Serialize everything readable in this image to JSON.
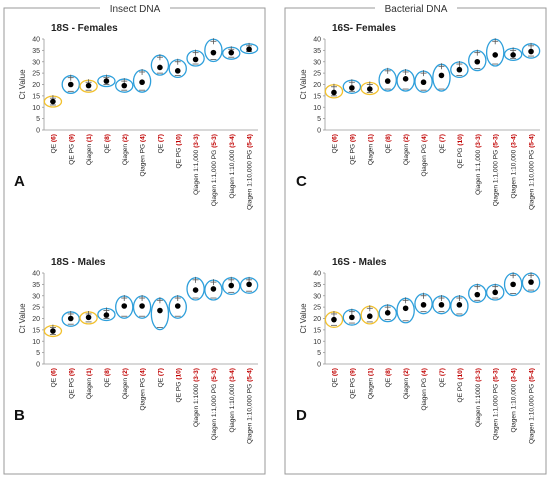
{
  "columns": [
    {
      "header": "Insect DNA"
    },
    {
      "header": "Bacterial DNA"
    }
  ],
  "chart_data": [
    {
      "type": "scatter",
      "panel": "A",
      "title": "18S - Females",
      "ylabel": "Ct Value",
      "ylim": [
        0,
        40
      ],
      "yticks": [
        0,
        5,
        10,
        15,
        20,
        25,
        30,
        35,
        40
      ],
      "categories": [
        {
          "text": "QE ",
          "tag": "(6)",
          "tag_color": "#c00000"
        },
        {
          "text": "QE PG ",
          "tag": "(9)",
          "tag_color": "#c00000"
        },
        {
          "text": "Qiagen ",
          "tag": "(1)",
          "tag_color": "#c00000"
        },
        {
          "text": "QE ",
          "tag": "(8)",
          "tag_color": "#c00000"
        },
        {
          "text": "Qiagen ",
          "tag": "(2)",
          "tag_color": "#c00000"
        },
        {
          "text": "Qiagen PG ",
          "tag": "(4)",
          "tag_color": "#c00000"
        },
        {
          "text": "QE ",
          "tag": "(7)",
          "tag_color": "#c00000"
        },
        {
          "text": "QE PG ",
          "tag": "(10)",
          "tag_color": "#c00000"
        },
        {
          "text": "Qiagen 1:1,000 ",
          "tag": "(3-3)",
          "tag_color": "#c00000"
        },
        {
          "text": "Qiagen 1:1,000 PG ",
          "tag": "(5-3)",
          "tag_color": "#c00000"
        },
        {
          "text": "Qiagen 1:10,000 ",
          "tag": "(3-4)",
          "tag_color": "#c00000"
        },
        {
          "text": "Qiagen 1:10,000 PG ",
          "tag": "(5-4)",
          "tag_color": "#c00000"
        }
      ],
      "values": [
        12.5,
        20,
        19.5,
        21.5,
        19.5,
        21,
        27.5,
        26,
        31,
        34,
        34,
        35.5
      ],
      "ranges": [
        [
          11,
          14
        ],
        [
          17,
          23
        ],
        [
          17.5,
          21
        ],
        [
          20,
          23
        ],
        [
          17.5,
          21.5
        ],
        [
          17.5,
          25.5
        ],
        [
          25,
          32
        ],
        [
          24,
          30
        ],
        [
          29,
          34
        ],
        [
          31,
          39
        ],
        [
          32,
          35.5
        ],
        [
          34.5,
          37
        ]
      ],
      "ellipse_colors": [
        "#f2c12e",
        "#2e9fdb",
        "#f2c12e",
        "#2e9fdb",
        "#2e9fdb",
        "#2e9fdb",
        "#2e9fdb",
        "#2e9fdb",
        "#2e9fdb",
        "#2e9fdb",
        "#2e9fdb",
        "#2e9fdb"
      ]
    },
    {
      "type": "scatter",
      "panel": "C",
      "title": "16S-  Females",
      "ylabel": "Ct Value",
      "ylim": [
        0,
        40
      ],
      "yticks": [
        0,
        5,
        10,
        15,
        20,
        25,
        30,
        35,
        40
      ],
      "categories": [
        {
          "text": "QE ",
          "tag": "(6)",
          "tag_color": "#c00000"
        },
        {
          "text": "QE PG ",
          "tag": "(9)",
          "tag_color": "#c00000"
        },
        {
          "text": "Qiagen ",
          "tag": "(1)",
          "tag_color": "#c00000"
        },
        {
          "text": "QE ",
          "tag": "(8)",
          "tag_color": "#c00000"
        },
        {
          "text": "Qiagen ",
          "tag": "(2)",
          "tag_color": "#c00000"
        },
        {
          "text": "Qiagen PG ",
          "tag": "(4)",
          "tag_color": "#c00000"
        },
        {
          "text": "QE ",
          "tag": "(7)",
          "tag_color": "#c00000"
        },
        {
          "text": "QE PG ",
          "tag": "(10)",
          "tag_color": "#c00000"
        },
        {
          "text": "Qiagen 1:1,000 ",
          "tag": "(3-3)",
          "tag_color": "#c00000"
        },
        {
          "text": "Qiagen 1:1,000 PG ",
          "tag": "(5-3)",
          "tag_color": "#c00000"
        },
        {
          "text": "Qiagen 1:10,000 ",
          "tag": "(3-4)",
          "tag_color": "#c00000"
        },
        {
          "text": "Qiagen 1:10,000 PG ",
          "tag": "(5-4)",
          "tag_color": "#c00000"
        }
      ],
      "values": [
        16.5,
        18.5,
        18,
        21.5,
        22.5,
        21,
        24,
        26.5,
        30,
        33,
        33,
        34.5
      ],
      "ranges": [
        [
          15,
          19
        ],
        [
          17,
          21
        ],
        [
          16.5,
          20
        ],
        [
          18,
          26
        ],
        [
          18,
          25.5
        ],
        [
          17.5,
          25
        ],
        [
          18,
          28
        ],
        [
          24,
          29
        ],
        [
          27,
          34
        ],
        [
          29,
          39
        ],
        [
          31.5,
          35
        ],
        [
          32.5,
          37
        ]
      ],
      "ellipse_colors": [
        "#f2c12e",
        "#2e9fdb",
        "#f2c12e",
        "#2e9fdb",
        "#2e9fdb",
        "#2e9fdb",
        "#2e9fdb",
        "#2e9fdb",
        "#2e9fdb",
        "#2e9fdb",
        "#2e9fdb",
        "#2e9fdb"
      ]
    },
    {
      "type": "scatter",
      "panel": "B",
      "title": "18S - Males",
      "ylabel": "Ct Value",
      "ylim": [
        0,
        40
      ],
      "yticks": [
        0,
        5,
        10,
        15,
        20,
        25,
        30,
        35,
        40
      ],
      "categories": [
        {
          "text": "QE ",
          "tag": "(6)",
          "tag_color": "#c00000"
        },
        {
          "text": "QE PG ",
          "tag": "(9)",
          "tag_color": "#c00000"
        },
        {
          "text": "Qiagen ",
          "tag": "(1)",
          "tag_color": "#c00000"
        },
        {
          "text": "QE ",
          "tag": "(8)",
          "tag_color": "#c00000"
        },
        {
          "text": "Qiagen ",
          "tag": "(2)",
          "tag_color": "#c00000"
        },
        {
          "text": "Qiagen PG ",
          "tag": "(4)",
          "tag_color": "#c00000"
        },
        {
          "text": "QE ",
          "tag": "(7)",
          "tag_color": "#c00000"
        },
        {
          "text": "QE PG ",
          "tag": "(10)",
          "tag_color": "#c00000"
        },
        {
          "text": "Qiagen 1:1000 ",
          "tag": "(3-3)",
          "tag_color": "#c00000"
        },
        {
          "text": "Qiagen 1:1,000 PG ",
          "tag": "(5-3)",
          "tag_color": "#c00000"
        },
        {
          "text": "Qiagen 1:10,000 ",
          "tag": "(3-4)",
          "tag_color": "#c00000"
        },
        {
          "text": "Qiagen 1:10,000 PG ",
          "tag": "(5-4)",
          "tag_color": "#c00000"
        }
      ],
      "values": [
        14.5,
        20,
        20.5,
        21.5,
        25.5,
        25.5,
        23.5,
        25.5,
        32.5,
        33,
        34.5,
        35
      ],
      "ranges": [
        [
          13,
          16
        ],
        [
          17.5,
          22
        ],
        [
          18.5,
          22
        ],
        [
          20,
          23.5
        ],
        [
          21,
          29
        ],
        [
          21,
          29
        ],
        [
          16,
          28
        ],
        [
          21,
          29
        ],
        [
          29,
          37
        ],
        [
          29,
          36
        ],
        [
          31.5,
          37
        ],
        [
          32,
          37
        ]
      ],
      "ellipse_colors": [
        "#f2c12e",
        "#2e9fdb",
        "#f2c12e",
        "#2e9fdb",
        "#2e9fdb",
        "#2e9fdb",
        "#2e9fdb",
        "#2e9fdb",
        "#2e9fdb",
        "#2e9fdb",
        "#2e9fdb",
        "#2e9fdb"
      ]
    },
    {
      "type": "scatter",
      "panel": "D",
      "title": "16S - Males",
      "ylabel": "Ct Value",
      "ylim": [
        0,
        40
      ],
      "yticks": [
        0,
        5,
        10,
        15,
        20,
        25,
        30,
        35,
        40
      ],
      "categories": [
        {
          "text": "QE ",
          "tag": "(6)",
          "tag_color": "#c00000"
        },
        {
          "text": "QE PG ",
          "tag": "(9)",
          "tag_color": "#c00000"
        },
        {
          "text": "Qiagen ",
          "tag": "(1)",
          "tag_color": "#c00000"
        },
        {
          "text": "QE ",
          "tag": "(8)",
          "tag_color": "#c00000"
        },
        {
          "text": "Qiagen ",
          "tag": "(2)",
          "tag_color": "#c00000"
        },
        {
          "text": "Qiagen PG ",
          "tag": "(4)",
          "tag_color": "#c00000"
        },
        {
          "text": "QE ",
          "tag": "(7)",
          "tag_color": "#c00000"
        },
        {
          "text": "QE PG ",
          "tag": "(10)",
          "tag_color": "#c00000"
        },
        {
          "text": "Qiagen 1:1000 ",
          "tag": "(3-3)",
          "tag_color": "#c00000"
        },
        {
          "text": "Qiagen 1:1,000 PG ",
          "tag": "(5-3)",
          "tag_color": "#c00000"
        },
        {
          "text": "Qiagen 1:10,000 ",
          "tag": "(3-4)",
          "tag_color": "#c00000"
        },
        {
          "text": "Qiagen 1:10,000 PG ",
          "tag": "(5-4)",
          "tag_color": "#c00000"
        }
      ],
      "values": [
        19.5,
        20.5,
        21,
        22.5,
        24.5,
        26,
        26,
        26,
        30.5,
        31.5,
        35,
        36
      ],
      "ranges": [
        [
          17,
          22
        ],
        [
          18,
          23
        ],
        [
          18.5,
          24.5
        ],
        [
          19.5,
          25
        ],
        [
          19,
          28
        ],
        [
          23,
          30
        ],
        [
          23,
          29
        ],
        [
          22,
          29
        ],
        [
          28,
          34
        ],
        [
          29,
          34
        ],
        [
          31,
          39
        ],
        [
          32.5,
          39
        ]
      ],
      "ellipse_colors": [
        "#f2c12e",
        "#2e9fdb",
        "#f2c12e",
        "#2e9fdb",
        "#2e9fdb",
        "#2e9fdb",
        "#2e9fdb",
        "#2e9fdb",
        "#2e9fdb",
        "#2e9fdb",
        "#2e9fdb",
        "#2e9fdb"
      ]
    }
  ]
}
